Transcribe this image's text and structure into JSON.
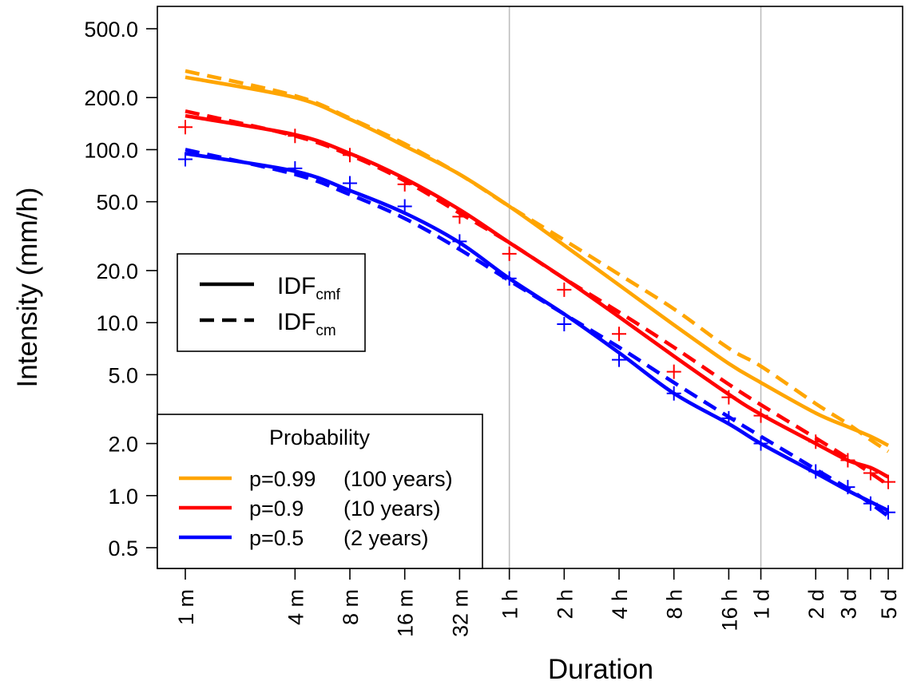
{
  "chart_data": {
    "type": "line",
    "xlabel": "Duration",
    "ylabel": "Intensity (mm/h)",
    "x_scale": "log",
    "y_scale": "log",
    "x_ticks": [
      {
        "label": "1 m",
        "hours": 0.016667
      },
      {
        "label": "4 m",
        "hours": 0.066667
      },
      {
        "label": "8 m",
        "hours": 0.133333
      },
      {
        "label": "16 m",
        "hours": 0.266667
      },
      {
        "label": "32 m",
        "hours": 0.533333
      },
      {
        "label": "1 h",
        "hours": 1
      },
      {
        "label": "2 h",
        "hours": 2
      },
      {
        "label": "4 h",
        "hours": 4
      },
      {
        "label": "8 h",
        "hours": 8
      },
      {
        "label": "16 h",
        "hours": 16
      },
      {
        "label": "1 d",
        "hours": 24
      },
      {
        "label": "2 d",
        "hours": 48
      },
      {
        "label": "3 d",
        "hours": 72
      },
      {
        "label": "",
        "hours": 96
      },
      {
        "label": "5 d",
        "hours": 120
      }
    ],
    "y_ticks": [
      {
        "label": "0.5",
        "value": 0.5
      },
      {
        "label": "1.0",
        "value": 1
      },
      {
        "label": "2.0",
        "value": 2
      },
      {
        "label": "5.0",
        "value": 5
      },
      {
        "label": "10.0",
        "value": 10
      },
      {
        "label": "20.0",
        "value": 20
      },
      {
        "label": "50.0",
        "value": 50
      },
      {
        "label": "100.0",
        "value": 100
      },
      {
        "label": "200.0",
        "value": 200
      },
      {
        "label": "500.0",
        "value": 500
      }
    ],
    "vlines_hours": [
      1,
      24
    ],
    "x_hours": [
      0.016667,
      0.066667,
      0.133333,
      0.266667,
      0.533333,
      1,
      2,
      4,
      8,
      16,
      24,
      48,
      72,
      96,
      120
    ],
    "series": [
      {
        "name": "p=0.99",
        "color": "#FFA500",
        "style": "solid",
        "values": [
          262,
          200,
          150,
          105,
          72,
          47,
          28,
          16.5,
          9.7,
          5.8,
          4.5,
          3.0,
          2.5,
          2.2,
          1.95
        ]
      },
      {
        "name": "p=0.99",
        "color": "#FFA500",
        "style": "dashed",
        "values": [
          285,
          205,
          152,
          108,
          72,
          47,
          30,
          19,
          12,
          7.1,
          5.6,
          3.4,
          2.6,
          2.1,
          1.8
        ]
      },
      {
        "name": "p=0.9",
        "color": "#FF0000",
        "style": "solid",
        "values": [
          157,
          122,
          95,
          68,
          45,
          29,
          18,
          10.8,
          6.4,
          3.85,
          2.95,
          2.0,
          1.6,
          1.45,
          1.28
        ]
      },
      {
        "name": "p=0.9",
        "color": "#FF0000",
        "style": "dashed",
        "values": [
          167,
          120,
          93,
          66,
          43,
          29,
          18,
          11.5,
          7.2,
          4.4,
          3.35,
          2.15,
          1.65,
          1.35,
          1.15
        ]
      },
      {
        "name": "p=0.5",
        "color": "#0000FF",
        "style": "solid",
        "values": [
          95,
          75,
          58,
          43,
          29,
          18,
          11.2,
          6.7,
          3.9,
          2.6,
          2.0,
          1.35,
          1.07,
          0.92,
          0.82
        ]
      },
      {
        "name": "p=0.5",
        "color": "#0000FF",
        "style": "dashed",
        "values": [
          100,
          72,
          55,
          40,
          26.5,
          17.5,
          11.2,
          7.2,
          4.5,
          2.85,
          2.2,
          1.42,
          1.1,
          0.9,
          0.76
        ]
      }
    ],
    "observed_points": [
      {
        "color": "#FF0000",
        "values": [
          135,
          120,
          93,
          63,
          41,
          25,
          15.5,
          8.6,
          5.2,
          3.7,
          2.9,
          2.05,
          1.6,
          1.35,
          1.2
        ]
      },
      {
        "color": "#0000FF",
        "values": [
          88,
          78,
          64,
          47,
          29.5,
          18,
          9.8,
          6.1,
          3.9,
          2.8,
          2.0,
          1.38,
          1.12,
          0.9,
          0.8
        ]
      }
    ],
    "legend_linetype": {
      "placement": "left-middle",
      "entries": [
        {
          "base": "IDF",
          "sub": "cmf",
          "style": "solid"
        },
        {
          "base": "IDF",
          "sub": "cm",
          "style": "dashed"
        }
      ]
    },
    "legend_probability": {
      "placement": "bottom-left",
      "title": "Probability",
      "entries": [
        {
          "p": "p=0.99",
          "years": "(100 years)",
          "color": "#FFA500"
        },
        {
          "p": "p=0.9",
          "years": "(10 years)",
          "color": "#FF0000"
        },
        {
          "p": "p=0.5",
          "years": "(2 years)",
          "color": "#0000FF"
        }
      ]
    },
    "colors": {
      "grid": "#BEBEBE",
      "axis": "#000000"
    }
  }
}
